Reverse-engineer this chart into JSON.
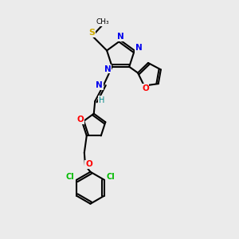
{
  "background_color": "#ebebeb",
  "bond_color": "#000000",
  "atom_colors": {
    "N": "#0000ee",
    "O": "#ff0000",
    "S": "#ccaa00",
    "Cl": "#00bb00",
    "C": "#000000",
    "H": "#008888"
  },
  "figsize": [
    3.0,
    3.0
  ],
  "dpi": 100
}
